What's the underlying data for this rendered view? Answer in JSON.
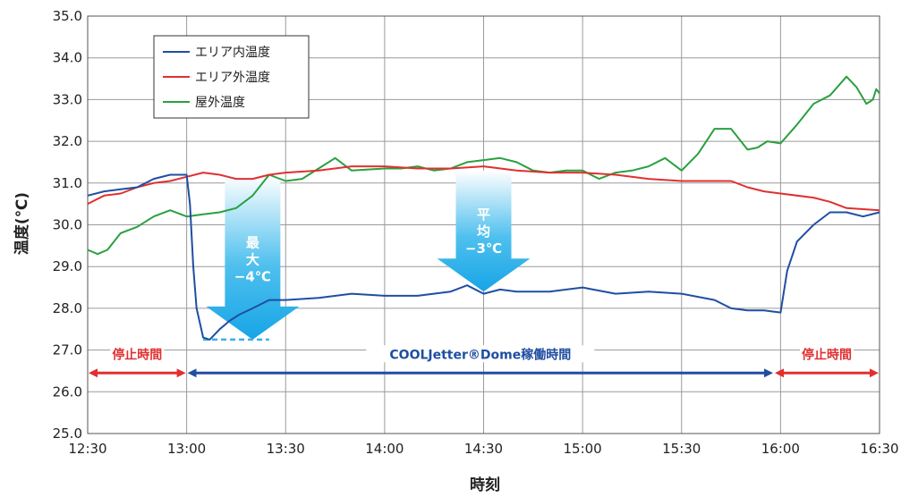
{
  "chart_data": {
    "type": "line",
    "xlabel": "時刻",
    "ylabel": "温度(℃)",
    "ylim": [
      25.0,
      35.0
    ],
    "x_ticks": [
      "12:30",
      "13:00",
      "13:30",
      "14:00",
      "14:30",
      "15:00",
      "15:30",
      "16:00",
      "16:30"
    ],
    "y_ticks": [
      "25.0",
      "26.0",
      "27.0",
      "28.0",
      "29.0",
      "30.0",
      "31.0",
      "32.0",
      "33.0",
      "34.0",
      "35.0"
    ],
    "grid": true,
    "legend_position": "top-left",
    "series": [
      {
        "name": "エリア内温度",
        "color": "#1f4ea1",
        "points": [
          [
            "12:30",
            30.7
          ],
          [
            "12:35",
            30.8
          ],
          [
            "12:40",
            30.85
          ],
          [
            "12:45",
            30.9
          ],
          [
            "12:50",
            31.1
          ],
          [
            "12:55",
            31.2
          ],
          [
            "13:00",
            31.2
          ],
          [
            "13:01",
            30.5
          ],
          [
            "13:02",
            29.0
          ],
          [
            "13:03",
            28.0
          ],
          [
            "13:05",
            27.3
          ],
          [
            "13:07",
            27.25
          ],
          [
            "13:10",
            27.5
          ],
          [
            "13:13",
            27.7
          ],
          [
            "13:16",
            27.85
          ],
          [
            "13:20",
            28.0
          ],
          [
            "13:25",
            28.2
          ],
          [
            "13:30",
            28.2
          ],
          [
            "13:40",
            28.25
          ],
          [
            "13:50",
            28.35
          ],
          [
            "14:00",
            28.3
          ],
          [
            "14:10",
            28.3
          ],
          [
            "14:20",
            28.4
          ],
          [
            "14:25",
            28.55
          ],
          [
            "14:30",
            28.35
          ],
          [
            "14:35",
            28.45
          ],
          [
            "14:40",
            28.4
          ],
          [
            "14:50",
            28.4
          ],
          [
            "15:00",
            28.5
          ],
          [
            "15:10",
            28.35
          ],
          [
            "15:20",
            28.4
          ],
          [
            "15:30",
            28.35
          ],
          [
            "15:40",
            28.2
          ],
          [
            "15:45",
            28.0
          ],
          [
            "15:50",
            27.95
          ],
          [
            "15:55",
            27.95
          ],
          [
            "16:00",
            27.9
          ],
          [
            "16:02",
            28.9
          ],
          [
            "16:05",
            29.6
          ],
          [
            "16:10",
            30.0
          ],
          [
            "16:15",
            30.3
          ],
          [
            "16:20",
            30.3
          ],
          [
            "16:25",
            30.2
          ],
          [
            "16:30",
            30.3
          ]
        ]
      },
      {
        "name": "エリア外温度",
        "color": "#e03030",
        "points": [
          [
            "12:30",
            30.5
          ],
          [
            "12:35",
            30.7
          ],
          [
            "12:40",
            30.75
          ],
          [
            "12:45",
            30.9
          ],
          [
            "12:50",
            31.0
          ],
          [
            "12:55",
            31.05
          ],
          [
            "13:00",
            31.15
          ],
          [
            "13:05",
            31.25
          ],
          [
            "13:10",
            31.2
          ],
          [
            "13:15",
            31.1
          ],
          [
            "13:20",
            31.1
          ],
          [
            "13:25",
            31.2
          ],
          [
            "13:30",
            31.25
          ],
          [
            "13:40",
            31.3
          ],
          [
            "13:50",
            31.4
          ],
          [
            "14:00",
            31.4
          ],
          [
            "14:10",
            31.35
          ],
          [
            "14:20",
            31.35
          ],
          [
            "14:30",
            31.4
          ],
          [
            "14:40",
            31.3
          ],
          [
            "14:50",
            31.25
          ],
          [
            "15:00",
            31.25
          ],
          [
            "15:10",
            31.2
          ],
          [
            "15:20",
            31.1
          ],
          [
            "15:30",
            31.05
          ],
          [
            "15:40",
            31.05
          ],
          [
            "15:45",
            31.05
          ],
          [
            "15:50",
            30.9
          ],
          [
            "15:55",
            30.8
          ],
          [
            "16:00",
            30.75
          ],
          [
            "16:10",
            30.65
          ],
          [
            "16:15",
            30.55
          ],
          [
            "16:20",
            30.4
          ],
          [
            "16:30",
            30.35
          ]
        ]
      },
      {
        "name": "屋外温度",
        "color": "#2aa040",
        "points": [
          [
            "12:30",
            29.4
          ],
          [
            "12:33",
            29.3
          ],
          [
            "12:36",
            29.4
          ],
          [
            "12:40",
            29.8
          ],
          [
            "12:45",
            29.95
          ],
          [
            "12:50",
            30.2
          ],
          [
            "12:55",
            30.35
          ],
          [
            "13:00",
            30.2
          ],
          [
            "13:05",
            30.25
          ],
          [
            "13:10",
            30.3
          ],
          [
            "13:15",
            30.4
          ],
          [
            "13:20",
            30.7
          ],
          [
            "13:25",
            31.2
          ],
          [
            "13:30",
            31.05
          ],
          [
            "13:35",
            31.1
          ],
          [
            "13:40",
            31.35
          ],
          [
            "13:45",
            31.6
          ],
          [
            "13:50",
            31.3
          ],
          [
            "14:00",
            31.35
          ],
          [
            "14:05",
            31.35
          ],
          [
            "14:10",
            31.4
          ],
          [
            "14:15",
            31.3
          ],
          [
            "14:20",
            31.35
          ],
          [
            "14:25",
            31.5
          ],
          [
            "14:30",
            31.55
          ],
          [
            "14:35",
            31.6
          ],
          [
            "14:40",
            31.5
          ],
          [
            "14:45",
            31.3
          ],
          [
            "14:50",
            31.25
          ],
          [
            "14:55",
            31.3
          ],
          [
            "15:00",
            31.3
          ],
          [
            "15:05",
            31.1
          ],
          [
            "15:10",
            31.25
          ],
          [
            "15:15",
            31.3
          ],
          [
            "15:20",
            31.4
          ],
          [
            "15:25",
            31.6
          ],
          [
            "15:30",
            31.3
          ],
          [
            "15:35",
            31.7
          ],
          [
            "15:40",
            32.3
          ],
          [
            "15:45",
            32.3
          ],
          [
            "15:50",
            31.8
          ],
          [
            "15:53",
            31.85
          ],
          [
            "15:56",
            32.0
          ],
          [
            "16:00",
            31.95
          ],
          [
            "16:05",
            32.4
          ],
          [
            "16:10",
            32.9
          ],
          [
            "16:15",
            33.1
          ],
          [
            "16:20",
            33.55
          ],
          [
            "16:23",
            33.3
          ],
          [
            "16:26",
            32.9
          ],
          [
            "16:28",
            33.0
          ],
          [
            "16:29",
            33.25
          ],
          [
            "16:30",
            33.15
          ]
        ]
      }
    ],
    "annotations": {
      "max_arrow": {
        "line1": "最",
        "line2": "大",
        "line3": "−4℃",
        "x": "13:20",
        "y_top": 31.2,
        "y_tip": 27.25
      },
      "avg_arrow": {
        "line1": "平",
        "line2": "均",
        "line3": "−3℃",
        "x": "14:30",
        "y_top": 31.3,
        "y_tip": 28.4
      },
      "dashed_line": {
        "from": "13:05",
        "to": "13:25",
        "y": 27.25
      },
      "periods": [
        {
          "label": "停止時間",
          "from": "12:30",
          "to": "13:00",
          "y": 26.45,
          "label_y": 26.9,
          "color": "#e03030"
        },
        {
          "label": "COOLJetter®Dome稼働時間",
          "from": "13:00",
          "to": "15:58",
          "y": 26.45,
          "label_y": 26.9,
          "color": "#1f4ea1"
        },
        {
          "label": "停止時間",
          "from": "15:58",
          "to": "16:30",
          "y": 26.45,
          "label_y": 26.9,
          "color": "#e03030"
        }
      ]
    }
  }
}
